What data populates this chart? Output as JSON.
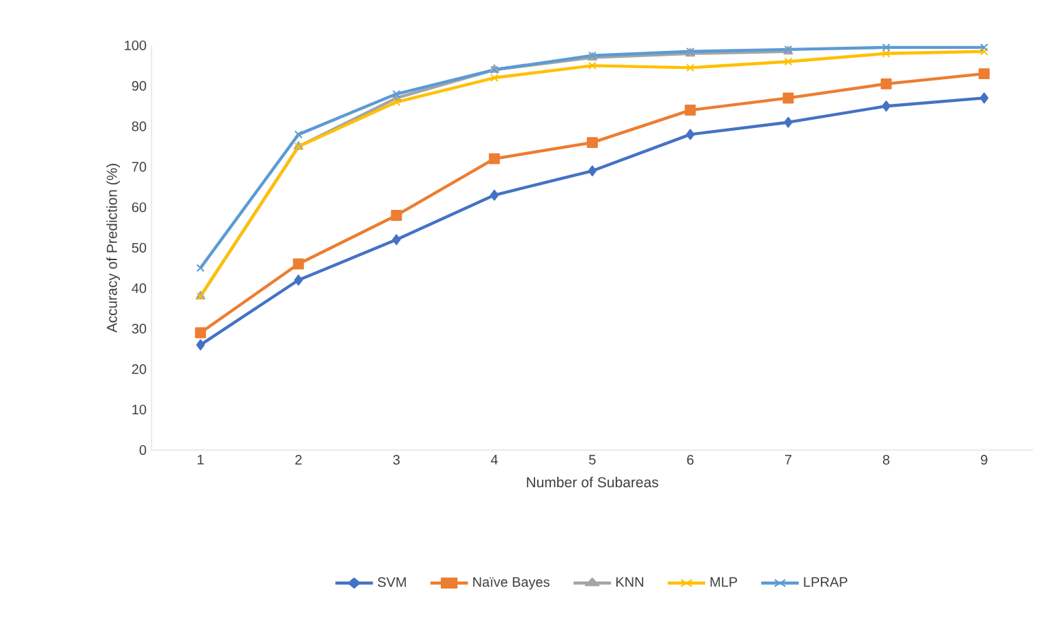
{
  "chart_data": {
    "type": "line",
    "xlabel": "Number of Subareas",
    "ylabel": "Accuracy of  Prediction (%)",
    "categories": [
      "1",
      "2",
      "3",
      "4",
      "5",
      "6",
      "7",
      "8",
      "9"
    ],
    "series": [
      {
        "name": "SVM",
        "color": "#4472c4",
        "marker": "diamond",
        "values": [
          26,
          42,
          52,
          63,
          69,
          78,
          81,
          85,
          87
        ]
      },
      {
        "name": "Naïve Bayes",
        "color": "#ed7d31",
        "marker": "square",
        "values": [
          29,
          46,
          58,
          72,
          76,
          84,
          87,
          90.5,
          93
        ]
      },
      {
        "name": "KNN",
        "color": "#a5a5a5",
        "marker": "triangle",
        "values": [
          38,
          75,
          87,
          94,
          97,
          98,
          98.5,
          null,
          null
        ]
      },
      {
        "name": "MLP",
        "color": "#ffc000",
        "marker": "cross",
        "values": [
          38,
          75,
          86,
          92,
          95,
          94.5,
          96,
          98,
          98.5
        ]
      },
      {
        "name": "LPRAP",
        "color": "#5b9bd5",
        "marker": "cross",
        "values": [
          45,
          78,
          88,
          94,
          97.5,
          98.5,
          99,
          99.5,
          99.5
        ]
      }
    ],
    "ylim": [
      0,
      100
    ],
    "yticks": [
      0,
      10,
      20,
      30,
      40,
      50,
      60,
      70,
      80,
      90,
      100
    ],
    "grid": false,
    "legend": "bottom",
    "line_style": "solid"
  }
}
